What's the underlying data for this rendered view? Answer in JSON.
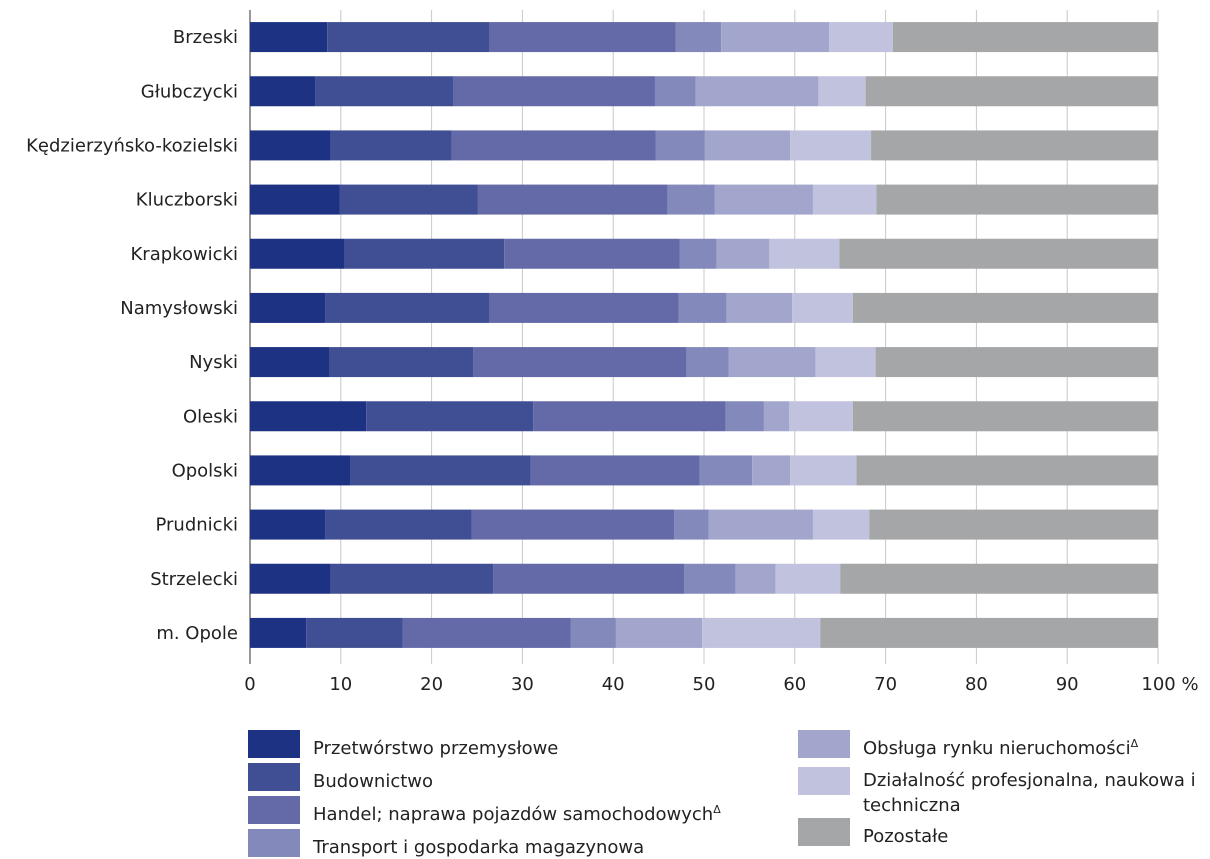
{
  "chart_data": {
    "type": "bar",
    "orientation": "horizontal",
    "stacked": true,
    "categories": [
      "Brzeski",
      "Głubczycki",
      "Kędzierzyńsko-kozielski",
      "Kluczborski",
      "Krapkowicki",
      "Namysłowski",
      "Nyski",
      "Oleski",
      "Opolski",
      "Prudnicki",
      "Strzelecki",
      "m. Opole"
    ],
    "series": [
      {
        "name": "Przetwórstwo przemysłowe",
        "color": "#1d3283",
        "values": [
          8.5,
          7.2,
          8.9,
          9.9,
          10.4,
          8.3,
          8.7,
          12.8,
          11.1,
          8.3,
          8.9,
          6.2
        ]
      },
      {
        "name": "Budownictwo",
        "color": "#404f94",
        "values": [
          17.9,
          15.2,
          13.3,
          15.2,
          17.6,
          18.1,
          15.9,
          18.4,
          19.8,
          16.1,
          17.9,
          10.6
        ]
      },
      {
        "name": "Handel; naprawa pojazdów samochodowych",
        "color": "#6469a7",
        "values": [
          20.5,
          22.2,
          22.5,
          20.9,
          19.3,
          20.8,
          23.5,
          21.2,
          18.6,
          22.3,
          21.0,
          18.5
        ]
      },
      {
        "name": "Transport i gospodarka magazynowa",
        "color": "#8489bb",
        "values": [
          5.0,
          4.5,
          5.4,
          5.2,
          4.1,
          5.3,
          4.6,
          4.2,
          5.8,
          3.8,
          5.7,
          5.0
        ]
      },
      {
        "name": "Obsługa rynku nieruchomości",
        "color": "#a3a6cc",
        "values": [
          11.9,
          13.5,
          9.4,
          10.8,
          5.8,
          7.2,
          9.6,
          2.8,
          4.2,
          11.5,
          4.4,
          9.5
        ]
      },
      {
        "name": "Działalność profesjonalna, naukowa i techniczna",
        "color": "#c0c2de",
        "values": [
          7.0,
          5.2,
          8.9,
          7.0,
          7.7,
          6.7,
          6.6,
          7.0,
          7.3,
          6.2,
          7.1,
          13.0
        ]
      },
      {
        "name": "Pozostałe",
        "color": "#a5a6a8",
        "values": [
          29.2,
          32.2,
          31.6,
          31.0,
          35.1,
          33.6,
          31.1,
          33.6,
          33.2,
          31.8,
          35.0,
          37.2
        ]
      }
    ],
    "xlim": [
      0,
      100
    ],
    "xticks": [
      "0",
      "10",
      "20",
      "30",
      "40",
      "50",
      "60",
      "70",
      "80",
      "90",
      "100 %"
    ],
    "grid": true
  },
  "legend": [
    {
      "label": "Przetwórstwo przemysłowe",
      "color": "#1d3283",
      "mark": ""
    },
    {
      "label": "Budownictwo",
      "color": "#404f94",
      "mark": ""
    },
    {
      "label": "Handel; naprawa pojazdów samochodowych",
      "color": "#6469a7",
      "mark": "Δ"
    },
    {
      "label": "Transport i gospodarka magazynowa",
      "color": "#8489bb",
      "mark": ""
    },
    {
      "label": "Obsługa rynku nieruchomości",
      "color": "#a3a6cc",
      "mark": "Δ"
    },
    {
      "label": "Działalność profesjonalna, naukowa i techniczna",
      "color": "#c0c2de",
      "mark": ""
    },
    {
      "label": "Pozostałe",
      "color": "#a5a6a8",
      "mark": ""
    }
  ]
}
